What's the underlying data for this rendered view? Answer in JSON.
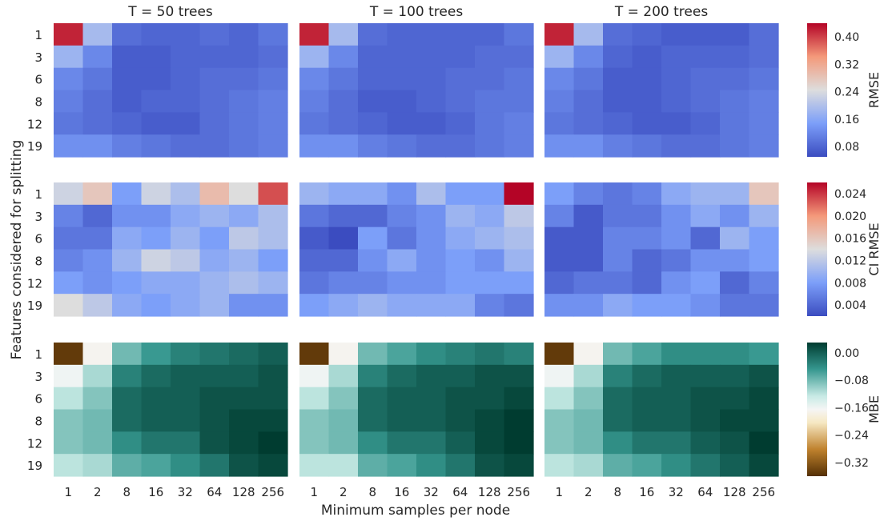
{
  "figure": {
    "xlabel": "Minimum samples per node",
    "ylabel": "Features considered for splitting"
  },
  "chart_data": {
    "type": "heatmap",
    "x_categories": [
      "1",
      "2",
      "8",
      "16",
      "32",
      "64",
      "128",
      "256"
    ],
    "y_categories": [
      "1",
      "3",
      "6",
      "8",
      "12",
      "19"
    ],
    "column_titles": [
      "T = 50 trees",
      "T = 100 trees",
      "T = 200 trees"
    ],
    "metrics": [
      {
        "name": "RMSE",
        "colormap": "coolwarm",
        "range": [
          0.05,
          0.44
        ],
        "ticks": [
          "0.08",
          "0.16",
          "0.24",
          "0.32",
          "0.40"
        ],
        "tick_values": [
          0.08,
          0.16,
          0.24,
          0.32,
          0.4
        ],
        "panels": [
          [
            [
              0.42,
              0.19,
              0.09,
              0.08,
              0.08,
              0.09,
              0.08,
              0.1
            ],
            [
              0.18,
              0.12,
              0.07,
              0.07,
              0.08,
              0.08,
              0.08,
              0.09
            ],
            [
              0.12,
              0.1,
              0.07,
              0.07,
              0.08,
              0.09,
              0.09,
              0.1
            ],
            [
              0.11,
              0.09,
              0.07,
              0.08,
              0.08,
              0.09,
              0.1,
              0.11
            ],
            [
              0.1,
              0.09,
              0.08,
              0.07,
              0.07,
              0.09,
              0.1,
              0.11
            ],
            [
              0.13,
              0.13,
              0.11,
              0.1,
              0.09,
              0.09,
              0.1,
              0.11
            ]
          ],
          [
            [
              0.42,
              0.19,
              0.09,
              0.08,
              0.08,
              0.08,
              0.08,
              0.1
            ],
            [
              0.18,
              0.12,
              0.08,
              0.08,
              0.08,
              0.08,
              0.09,
              0.09
            ],
            [
              0.12,
              0.1,
              0.08,
              0.08,
              0.08,
              0.09,
              0.09,
              0.1
            ],
            [
              0.11,
              0.09,
              0.07,
              0.07,
              0.08,
              0.09,
              0.1,
              0.1
            ],
            [
              0.1,
              0.09,
              0.08,
              0.07,
              0.07,
              0.08,
              0.1,
              0.11
            ],
            [
              0.13,
              0.13,
              0.11,
              0.1,
              0.09,
              0.09,
              0.1,
              0.11
            ]
          ],
          [
            [
              0.42,
              0.19,
              0.09,
              0.08,
              0.07,
              0.07,
              0.07,
              0.09
            ],
            [
              0.18,
              0.12,
              0.08,
              0.07,
              0.08,
              0.08,
              0.08,
              0.09
            ],
            [
              0.12,
              0.1,
              0.07,
              0.07,
              0.08,
              0.09,
              0.09,
              0.1
            ],
            [
              0.11,
              0.09,
              0.07,
              0.07,
              0.08,
              0.09,
              0.1,
              0.11
            ],
            [
              0.1,
              0.09,
              0.08,
              0.07,
              0.07,
              0.08,
              0.1,
              0.11
            ],
            [
              0.13,
              0.13,
              0.11,
              0.1,
              0.09,
              0.09,
              0.1,
              0.11
            ]
          ]
        ]
      },
      {
        "name": "CI RMSE",
        "colormap": "coolwarm",
        "range": [
          0.002,
          0.026
        ],
        "ticks": [
          "0.004",
          "0.008",
          "0.012",
          "0.016",
          "0.020",
          "0.024"
        ],
        "tick_values": [
          0.004,
          0.008,
          0.012,
          0.016,
          0.02,
          0.024
        ],
        "panels": [
          [
            [
              0.013,
              0.016,
              0.008,
              0.013,
              0.011,
              0.017,
              0.014,
              0.023
            ],
            [
              0.006,
              0.004,
              0.007,
              0.007,
              0.009,
              0.01,
              0.009,
              0.011
            ],
            [
              0.005,
              0.005,
              0.009,
              0.008,
              0.01,
              0.008,
              0.012,
              0.011
            ],
            [
              0.006,
              0.007,
              0.01,
              0.013,
              0.012,
              0.009,
              0.01,
              0.008
            ],
            [
              0.008,
              0.007,
              0.008,
              0.009,
              0.009,
              0.01,
              0.011,
              0.01
            ],
            [
              0.014,
              0.012,
              0.009,
              0.008,
              0.009,
              0.01,
              0.007,
              0.007
            ]
          ],
          [
            [
              0.01,
              0.009,
              0.009,
              0.007,
              0.011,
              0.008,
              0.008,
              0.026
            ],
            [
              0.005,
              0.004,
              0.004,
              0.006,
              0.007,
              0.01,
              0.009,
              0.012
            ],
            [
              0.003,
              0.002,
              0.008,
              0.005,
              0.007,
              0.009,
              0.01,
              0.011
            ],
            [
              0.004,
              0.004,
              0.007,
              0.009,
              0.007,
              0.008,
              0.007,
              0.01
            ],
            [
              0.005,
              0.006,
              0.006,
              0.007,
              0.007,
              0.008,
              0.008,
              0.008
            ],
            [
              0.008,
              0.009,
              0.01,
              0.009,
              0.009,
              0.009,
              0.006,
              0.005
            ]
          ],
          [
            [
              0.008,
              0.006,
              0.005,
              0.006,
              0.009,
              0.01,
              0.01,
              0.016
            ],
            [
              0.006,
              0.003,
              0.005,
              0.005,
              0.007,
              0.009,
              0.007,
              0.01
            ],
            [
              0.003,
              0.003,
              0.006,
              0.006,
              0.007,
              0.004,
              0.01,
              0.008
            ],
            [
              0.003,
              0.003,
              0.006,
              0.004,
              0.005,
              0.007,
              0.007,
              0.008
            ],
            [
              0.004,
              0.005,
              0.005,
              0.004,
              0.007,
              0.008,
              0.004,
              0.006
            ],
            [
              0.007,
              0.007,
              0.009,
              0.008,
              0.008,
              0.007,
              0.005,
              0.005
            ]
          ]
        ]
      },
      {
        "name": "MBE",
        "colormap": "BrBG",
        "range": [
          -0.36,
          0.03
        ],
        "ticks": [
          "0.00",
          "−0.08",
          "−0.16",
          "−0.24",
          "−0.32"
        ],
        "tick_values": [
          0.0,
          -0.08,
          -0.16,
          -0.24,
          -0.32
        ],
        "panels": [
          [
            [
              -0.35,
              -0.17,
              -0.08,
              -0.05,
              -0.03,
              -0.02,
              -0.01,
              0.0
            ],
            [
              -0.16,
              -0.11,
              -0.03,
              -0.01,
              0.0,
              0.0,
              0.0,
              0.01
            ],
            [
              -0.12,
              -0.09,
              -0.01,
              0.0,
              0.0,
              0.01,
              0.01,
              0.01
            ],
            [
              -0.09,
              -0.08,
              -0.01,
              0.0,
              0.0,
              0.01,
              0.02,
              0.02
            ],
            [
              -0.09,
              -0.08,
              -0.04,
              -0.02,
              -0.02,
              0.01,
              0.02,
              0.03
            ],
            [
              -0.12,
              -0.11,
              -0.07,
              -0.06,
              -0.04,
              -0.02,
              0.01,
              0.02
            ]
          ],
          [
            [
              -0.35,
              -0.17,
              -0.08,
              -0.06,
              -0.04,
              -0.03,
              -0.02,
              -0.03
            ],
            [
              -0.16,
              -0.11,
              -0.03,
              -0.01,
              0.0,
              0.0,
              0.01,
              0.01
            ],
            [
              -0.12,
              -0.09,
              -0.01,
              0.0,
              0.0,
              0.01,
              0.01,
              0.02
            ],
            [
              -0.09,
              -0.08,
              -0.01,
              0.0,
              0.0,
              0.01,
              0.02,
              0.03
            ],
            [
              -0.09,
              -0.08,
              -0.04,
              -0.02,
              -0.02,
              0.0,
              0.02,
              0.03
            ],
            [
              -0.12,
              -0.12,
              -0.07,
              -0.06,
              -0.04,
              -0.02,
              0.01,
              0.02
            ]
          ],
          [
            [
              -0.35,
              -0.17,
              -0.08,
              -0.06,
              -0.04,
              -0.04,
              -0.04,
              -0.05
            ],
            [
              -0.16,
              -0.11,
              -0.03,
              -0.01,
              0.0,
              0.0,
              0.0,
              0.01
            ],
            [
              -0.12,
              -0.09,
              -0.01,
              0.0,
              0.0,
              0.01,
              0.01,
              0.02
            ],
            [
              -0.09,
              -0.08,
              -0.01,
              0.0,
              0.0,
              0.01,
              0.02,
              0.02
            ],
            [
              -0.09,
              -0.08,
              -0.04,
              -0.02,
              -0.02,
              0.0,
              0.01,
              0.03
            ],
            [
              -0.12,
              -0.11,
              -0.07,
              -0.06,
              -0.04,
              -0.02,
              0.0,
              0.02
            ]
          ]
        ]
      }
    ]
  }
}
